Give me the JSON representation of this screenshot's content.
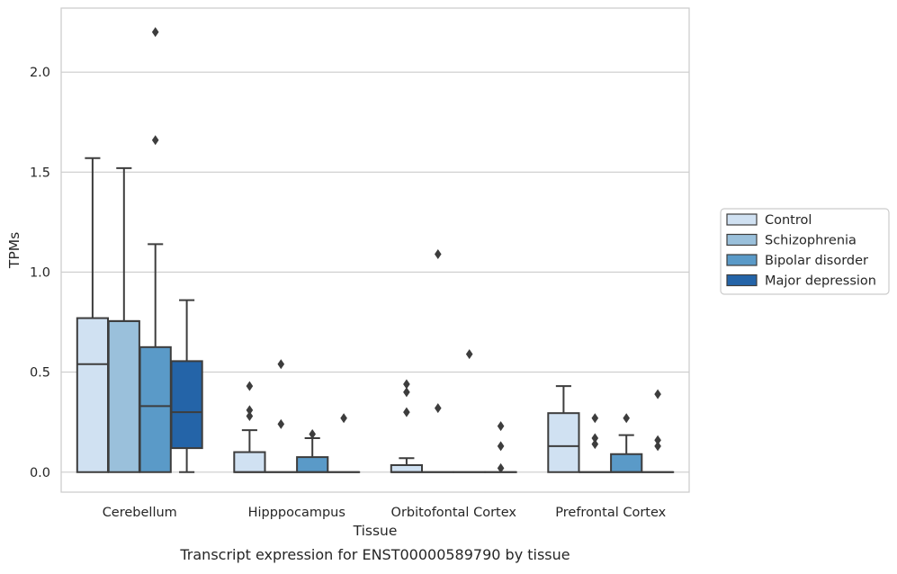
{
  "chart_data": {
    "type": "box",
    "title": "",
    "caption": "Transcript expression for ENST00000589790 by tissue",
    "xlabel": "Tissue",
    "ylabel": "TPMs",
    "ylim": [
      -0.1,
      2.32
    ],
    "yticks": [
      0.0,
      0.5,
      1.0,
      1.5,
      2.0
    ],
    "ytick_labels": [
      "0.0",
      "0.5",
      "1.0",
      "1.5",
      "2.0"
    ],
    "grid": "horizontal",
    "legend_position": "right",
    "categories": [
      "Cerebellum",
      "Hipppocampus",
      "Orbitofontal Cortex",
      "Prefrontal Cortex"
    ],
    "series": [
      {
        "name": "Control",
        "color": "#d0e1f2",
        "boxes": [
          {
            "q1": 0.0,
            "median": 0.54,
            "q3": 0.77,
            "whisker_low": 0.0,
            "whisker_high": 1.57,
            "outliers": []
          },
          {
            "q1": 0.0,
            "median": 0.0,
            "q3": 0.1,
            "whisker_low": 0.0,
            "whisker_high": 0.21,
            "outliers": [
              0.28,
              0.31,
              0.43
            ]
          },
          {
            "q1": 0.0,
            "median": 0.0,
            "q3": 0.035,
            "whisker_low": 0.0,
            "whisker_high": 0.07,
            "outliers": [
              0.3,
              0.4,
              0.44
            ]
          },
          {
            "q1": 0.0,
            "median": 0.13,
            "q3": 0.295,
            "whisker_low": 0.0,
            "whisker_high": 0.43,
            "outliers": []
          }
        ]
      },
      {
        "name": "Schizophrenia",
        "color": "#9ac0db",
        "boxes": [
          {
            "q1": 0.0,
            "median": 0.755,
            "q3": 0.755,
            "whisker_low": 0.0,
            "whisker_high": 1.52,
            "outliers": []
          },
          {
            "q1": 0.0,
            "median": 0.0,
            "q3": 0.0,
            "whisker_low": 0.0,
            "whisker_high": 0.0,
            "outliers": [
              0.24,
              0.54
            ]
          },
          {
            "q1": 0.0,
            "median": 0.0,
            "q3": 0.0,
            "whisker_low": 0.0,
            "whisker_high": 0.0,
            "outliers": [
              0.32,
              1.09
            ]
          },
          {
            "q1": 0.0,
            "median": 0.0,
            "q3": 0.0,
            "whisker_low": 0.0,
            "whisker_high": 0.0,
            "outliers": [
              0.14,
              0.17,
              0.27
            ]
          }
        ]
      },
      {
        "name": "Bipolar disorder",
        "color": "#5a9ac8",
        "boxes": [
          {
            "q1": 0.0,
            "median": 0.33,
            "q3": 0.625,
            "whisker_low": 0.0,
            "whisker_high": 1.14,
            "outliers": [
              1.66,
              2.2
            ]
          },
          {
            "q1": 0.0,
            "median": 0.0,
            "q3": 0.075,
            "whisker_low": 0.0,
            "whisker_high": 0.17,
            "outliers": [
              0.19
            ]
          },
          {
            "q1": 0.0,
            "median": 0.0,
            "q3": 0.0,
            "whisker_low": 0.0,
            "whisker_high": 0.0,
            "outliers": [
              0.59
            ]
          },
          {
            "q1": 0.0,
            "median": 0.0,
            "q3": 0.09,
            "whisker_low": 0.0,
            "whisker_high": 0.185,
            "outliers": [
              0.27
            ]
          }
        ]
      },
      {
        "name": "Major depression",
        "color": "#2464a8",
        "boxes": [
          {
            "q1": 0.12,
            "median": 0.3,
            "q3": 0.555,
            "whisker_low": 0.0,
            "whisker_high": 0.86,
            "outliers": []
          },
          {
            "q1": 0.0,
            "median": 0.0,
            "q3": 0.0,
            "whisker_low": 0.0,
            "whisker_high": 0.0,
            "outliers": [
              0.27
            ]
          },
          {
            "q1": 0.0,
            "median": 0.0,
            "q3": 0.0,
            "whisker_low": 0.0,
            "whisker_high": 0.0,
            "outliers": [
              0.02,
              0.13,
              0.23
            ]
          },
          {
            "q1": 0.0,
            "median": 0.0,
            "q3": 0.0,
            "whisker_low": 0.0,
            "whisker_high": 0.0,
            "outliers": [
              0.13,
              0.16,
              0.39
            ]
          }
        ]
      }
    ]
  }
}
